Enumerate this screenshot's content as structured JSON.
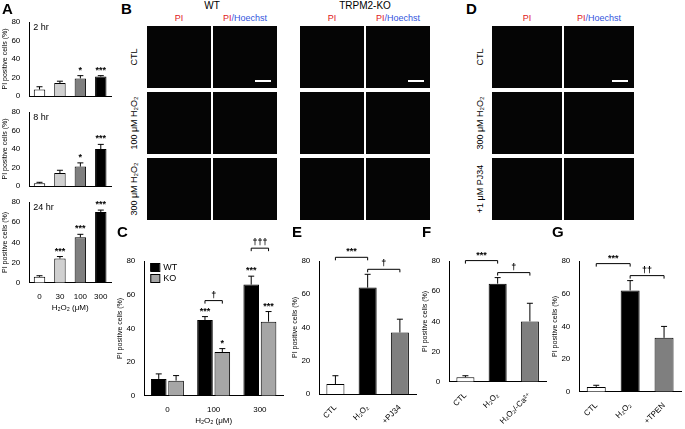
{
  "chart_data": [
    {
      "type": "bar",
      "panel": "A",
      "title": "2 hr",
      "categories": [
        "0",
        "30",
        "100",
        "300"
      ],
      "values": [
        7,
        14,
        19,
        21
      ],
      "errors": [
        3,
        2,
        3,
        1
      ],
      "colors": [
        "#ffffff",
        "#d0d0d0",
        "#7f7f7f",
        "#000000"
      ],
      "y_label": "PI positive cells (%)",
      "ylim": [
        0,
        80
      ],
      "yticks": [
        0,
        20,
        40,
        60,
        80
      ],
      "grid": false,
      "tick_labels": "y",
      "annotations": [
        {
          "category": "100",
          "text": "*"
        },
        {
          "category": "300",
          "text": "***"
        }
      ]
    },
    {
      "type": "bar",
      "title": "8 hr",
      "categories": [
        "0",
        "30",
        "100",
        "300"
      ],
      "values": [
        3,
        14,
        21,
        40
      ],
      "errors": [
        1,
        3,
        4,
        5
      ],
      "colors": [
        "#ffffff",
        "#d0d0d0",
        "#7f7f7f",
        "#000000"
      ],
      "y_label": "PI positive cells (%)",
      "ylim": [
        0,
        80
      ],
      "yticks": [
        0,
        20,
        40,
        60,
        80
      ],
      "grid": false,
      "tick_labels": "y",
      "annotations": [
        {
          "category": "100",
          "text": "*"
        },
        {
          "category": "300",
          "text": "***"
        }
      ]
    },
    {
      "type": "bar",
      "title": "24 hr",
      "categories": [
        "0",
        "30",
        "100",
        "300"
      ],
      "values": [
        6,
        24,
        45,
        70
      ],
      "errors": [
        1,
        2,
        3,
        2
      ],
      "colors": [
        "#ffffff",
        "#d0d0d0",
        "#7f7f7f",
        "#000000"
      ],
      "x_label": "H₂O₂ (μM)",
      "y_label": "PI positive cells (%)",
      "ylim": [
        0,
        80
      ],
      "yticks": [
        0,
        20,
        40,
        60,
        80
      ],
      "grid": false,
      "annotations": [
        {
          "category": "30",
          "text": "***"
        },
        {
          "category": "100",
          "text": "***"
        },
        {
          "category": "300",
          "text": "***"
        }
      ]
    },
    {
      "type": "bar",
      "panel": "C",
      "categories": [
        "0",
        "100",
        "300"
      ],
      "series": [
        {
          "name": "WT",
          "color": "#000000",
          "values": [
            10,
            45,
            66
          ],
          "errors": [
            3,
            2,
            5
          ]
        },
        {
          "name": "KO",
          "color": "#a6a6a6",
          "values": [
            9,
            26,
            44
          ],
          "errors": [
            3,
            2,
            6
          ]
        }
      ],
      "legend": "upper left",
      "x_label": "H₂O₂ (μM)",
      "y_label": "PI positive cells (%)",
      "ylim": [
        0,
        80
      ],
      "yticks": [
        0,
        20,
        40,
        60,
        80
      ],
      "grid": false,
      "annotations": [
        {
          "category": "100",
          "series": "WT",
          "text": "***"
        },
        {
          "category": "100",
          "series": "KO",
          "text": "*"
        },
        {
          "category": "300",
          "series": "WT",
          "text": "***"
        },
        {
          "category": "300",
          "series": "KO",
          "text": "***"
        }
      ],
      "comparisons": [
        {
          "category": "100",
          "from": "WT",
          "to": "KO",
          "text": "†"
        },
        {
          "category": "300",
          "from": "WT",
          "to": "KO",
          "text": "†††"
        }
      ]
    },
    {
      "type": "bar",
      "panel": "E",
      "categories": [
        "CTL",
        "H₂O₂",
        "+PJ34"
      ],
      "values": [
        6,
        64,
        37
      ],
      "errors": [
        5,
        8,
        8
      ],
      "colors": [
        "#ffffff",
        "#000000",
        "#7f7f7f"
      ],
      "y_label": "PI positive cells (%)",
      "ylim": [
        0,
        80
      ],
      "yticks": [
        0,
        20,
        40,
        60,
        80
      ],
      "grid": false,
      "comparisons": [
        {
          "from": "H₂O₂",
          "to": "+PJ34",
          "text": "†"
        },
        {
          "from": "CTL",
          "to": "H₂O₂",
          "text": "***"
        }
      ]
    },
    {
      "type": "bar",
      "panel": "F",
      "categories": [
        "CTL",
        "H₂O₂",
        "H₂O₂/-Ca²⁺"
      ],
      "values": [
        3,
        65,
        40
      ],
      "errors": [
        1,
        4,
        12
      ],
      "colors": [
        "#ffffff",
        "#000000",
        "#7f7f7f"
      ],
      "y_label": "PI positive cells (%)",
      "ylim": [
        0,
        80
      ],
      "yticks": [
        0,
        20,
        40,
        60,
        80
      ],
      "grid": false,
      "comparisons": [
        {
          "from": "H₂O₂",
          "to": "H₂O₂/-Ca²⁺",
          "text": "†"
        },
        {
          "from": "CTL",
          "to": "H₂O₂",
          "text": "***"
        }
      ]
    },
    {
      "type": "bar",
      "panel": "G",
      "categories": [
        "CTL",
        "H₂O₂",
        "+TPEN"
      ],
      "values": [
        3,
        62,
        33
      ],
      "errors": [
        1,
        6,
        7
      ],
      "colors": [
        "#ffffff",
        "#000000",
        "#7f7f7f"
      ],
      "y_label": "PI positive cells (%)",
      "ylim": [
        0,
        80
      ],
      "yticks": [
        0,
        20,
        40,
        60,
        80
      ],
      "grid": false,
      "comparisons": [
        {
          "from": "H₂O₂",
          "to": "+TPEN",
          "text": "††"
        },
        {
          "from": "CTL",
          "to": "H₂O₂",
          "text": "***"
        }
      ]
    }
  ],
  "image_panels": [
    {
      "panel": "B",
      "groups": [
        {
          "name": "WT",
          "channels": [
            "PI",
            "PI/Hoechst"
          ]
        },
        {
          "name": "TRPM2-KO",
          "channels": [
            "PI",
            "PI/Hoechst"
          ]
        }
      ],
      "rows": [
        "CTL",
        "100 μM H₂O₂",
        "300 μM H₂O₂"
      ]
    },
    {
      "panel": "D",
      "groups": [
        {
          "channels": [
            "PI",
            "PI/Hoechst"
          ]
        }
      ],
      "rows": [
        "CTL",
        "300 μM H₂O₂",
        "+1 μM PJ34"
      ]
    }
  ]
}
